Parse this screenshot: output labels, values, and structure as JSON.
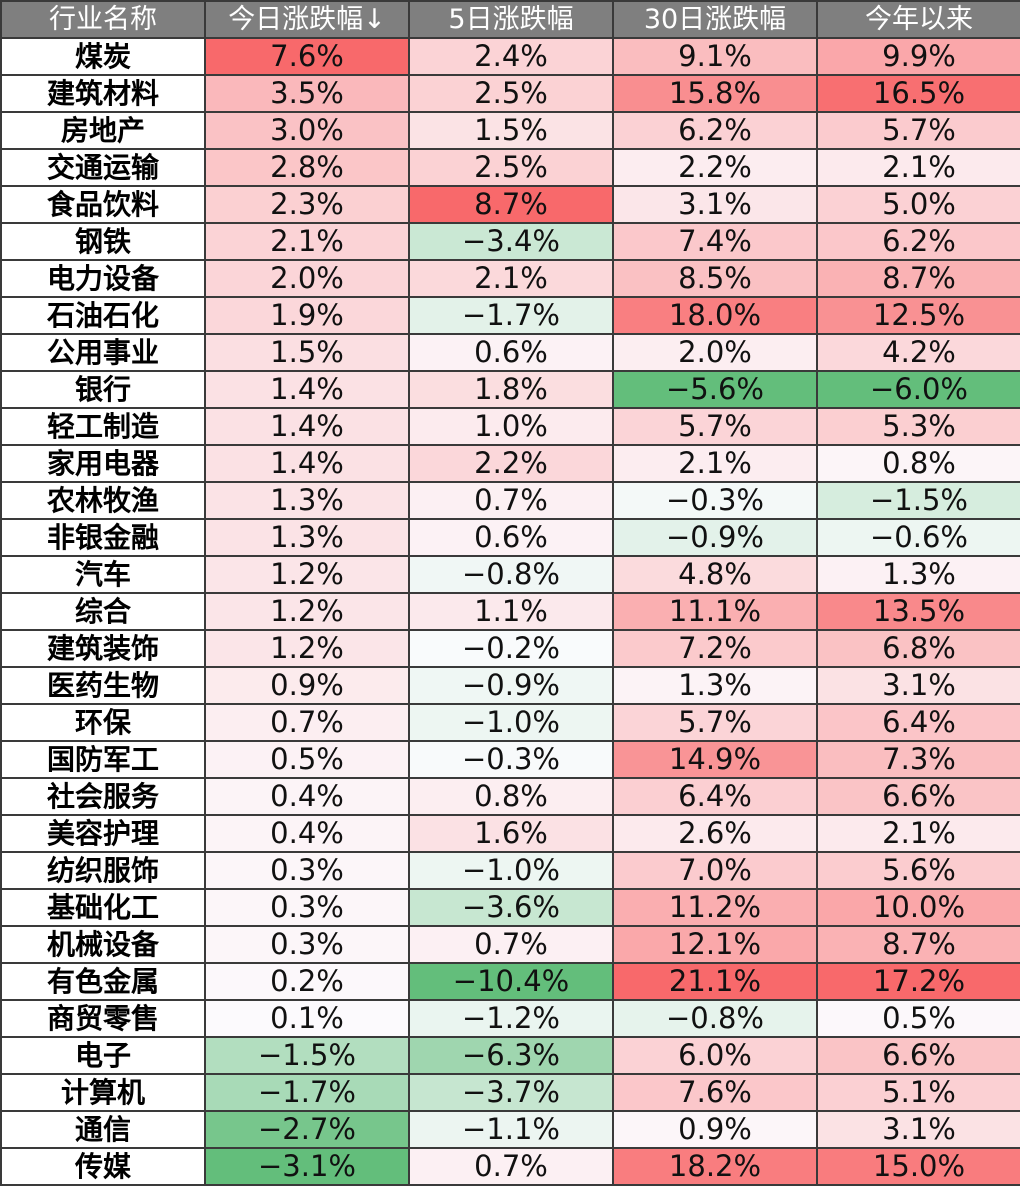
{
  "table": {
    "headers": [
      "行业名称",
      "今日涨跌幅↓",
      "5日涨跌幅",
      "30日涨跌幅",
      "今年以来"
    ]
  },
  "chart_data": {
    "type": "heatmap",
    "columns": [
      "今日涨跌幅↓",
      "5日涨跌幅",
      "30日涨跌幅",
      "今年以来"
    ],
    "unit": "%",
    "colors": {
      "positive_max": "#f8696b",
      "negative_max": "#63be7b",
      "neutral": "#fcfcff",
      "header_bg": "#7f7f7f",
      "border": "#3a3a3a"
    },
    "rows": [
      {
        "industry": "煤炭",
        "values": [
          7.6,
          2.4,
          9.1,
          9.9
        ]
      },
      {
        "industry": "建筑材料",
        "values": [
          3.5,
          2.5,
          15.8,
          16.5
        ]
      },
      {
        "industry": "房地产",
        "values": [
          3.0,
          1.5,
          6.2,
          5.7
        ]
      },
      {
        "industry": "交通运输",
        "values": [
          2.8,
          2.5,
          2.2,
          2.1
        ]
      },
      {
        "industry": "食品饮料",
        "values": [
          2.3,
          8.7,
          3.1,
          5.0
        ]
      },
      {
        "industry": "钢铁",
        "values": [
          2.1,
          -3.4,
          7.4,
          6.2
        ]
      },
      {
        "industry": "电力设备",
        "values": [
          2.0,
          2.1,
          8.5,
          8.7
        ]
      },
      {
        "industry": "石油石化",
        "values": [
          1.9,
          -1.7,
          18.0,
          12.5
        ]
      },
      {
        "industry": "公用事业",
        "values": [
          1.5,
          0.6,
          2.0,
          4.2
        ]
      },
      {
        "industry": "银行",
        "values": [
          1.4,
          1.8,
          -5.6,
          -6.0
        ]
      },
      {
        "industry": "轻工制造",
        "values": [
          1.4,
          1.0,
          5.7,
          5.3
        ]
      },
      {
        "industry": "家用电器",
        "values": [
          1.4,
          2.2,
          2.1,
          0.8
        ]
      },
      {
        "industry": "农林牧渔",
        "values": [
          1.3,
          0.7,
          -0.3,
          -1.5
        ]
      },
      {
        "industry": "非银金融",
        "values": [
          1.3,
          0.6,
          -0.9,
          -0.6
        ]
      },
      {
        "industry": "汽车",
        "values": [
          1.2,
          -0.8,
          4.8,
          1.3
        ]
      },
      {
        "industry": "综合",
        "values": [
          1.2,
          1.1,
          11.1,
          13.5
        ]
      },
      {
        "industry": "建筑装饰",
        "values": [
          1.2,
          -0.2,
          7.2,
          6.8
        ]
      },
      {
        "industry": "医药生物",
        "values": [
          0.9,
          -0.9,
          1.3,
          3.1
        ]
      },
      {
        "industry": "环保",
        "values": [
          0.7,
          -1.0,
          5.7,
          6.4
        ]
      },
      {
        "industry": "国防军工",
        "values": [
          0.5,
          -0.3,
          14.9,
          7.3
        ]
      },
      {
        "industry": "社会服务",
        "values": [
          0.4,
          0.8,
          6.4,
          6.6
        ]
      },
      {
        "industry": "美容护理",
        "values": [
          0.4,
          1.6,
          2.6,
          2.1
        ]
      },
      {
        "industry": "纺织服饰",
        "values": [
          0.3,
          -1.0,
          7.0,
          5.6
        ]
      },
      {
        "industry": "基础化工",
        "values": [
          0.3,
          -3.6,
          11.2,
          10.0
        ]
      },
      {
        "industry": "机械设备",
        "values": [
          0.3,
          0.7,
          12.1,
          8.7
        ]
      },
      {
        "industry": "有色金属",
        "values": [
          0.2,
          -10.4,
          21.1,
          17.2
        ]
      },
      {
        "industry": "商贸零售",
        "values": [
          0.1,
          -1.2,
          -0.8,
          0.5
        ]
      },
      {
        "industry": "电子",
        "values": [
          -1.5,
          -6.3,
          6.0,
          6.6
        ]
      },
      {
        "industry": "计算机",
        "values": [
          -1.7,
          -3.7,
          7.6,
          5.1
        ]
      },
      {
        "industry": "通信",
        "values": [
          -2.7,
          -1.1,
          0.9,
          3.1
        ]
      },
      {
        "industry": "传媒",
        "values": [
          -3.1,
          0.7,
          18.2,
          15.0
        ]
      }
    ]
  }
}
